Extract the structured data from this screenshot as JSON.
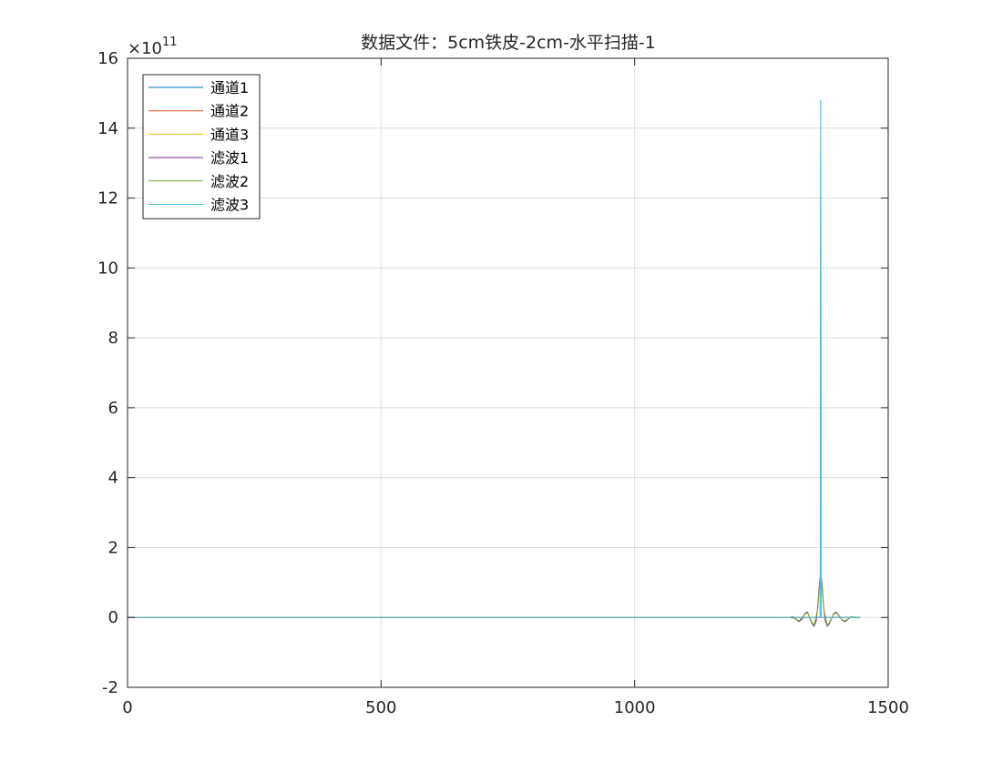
{
  "chart_data": {
    "type": "line",
    "title": "数据文件：5cm铁皮-2cm-水平扫描-1",
    "xlabel": "",
    "ylabel": "",
    "xlim": [
      0,
      1500
    ],
    "ylim": [
      -2,
      16
    ],
    "x_ticks": [
      "0",
      "500",
      "1000",
      "1500"
    ],
    "y_ticks": [
      "-2",
      "0",
      "2",
      "4",
      "6",
      "8",
      "10",
      "12",
      "14",
      "16"
    ],
    "x_tick_values": [
      0,
      500,
      1000,
      1500
    ],
    "y_tick_values": [
      -2,
      0,
      2,
      4,
      6,
      8,
      10,
      12,
      14,
      16
    ],
    "y_multiplier_prefix": "×10",
    "y_multiplier_exponent": "11",
    "grid": true,
    "legend_position": "top-left",
    "series": [
      {
        "name": "通道1",
        "color": "#0072BD",
        "points": [
          [
            0,
            0
          ],
          [
            1360,
            0
          ],
          [
            1366,
            0
          ],
          [
            1367,
            14.8
          ],
          [
            1368,
            0
          ],
          [
            1369,
            0
          ],
          [
            1445,
            0
          ]
        ]
      },
      {
        "name": "通道2",
        "color": "#D95319",
        "points": [
          [
            0,
            0
          ],
          [
            1366,
            0
          ],
          [
            1367,
            8.6
          ],
          [
            1368,
            0
          ],
          [
            1445,
            0
          ]
        ]
      },
      {
        "name": "通道3",
        "color": "#EDB120",
        "points": [
          [
            0,
            0
          ],
          [
            1366,
            0
          ],
          [
            1367,
            11.2
          ],
          [
            1368,
            0
          ],
          [
            1445,
            0
          ]
        ]
      },
      {
        "name": "滤波1",
        "color": "#7E2F8E",
        "points": [
          [
            1305,
            0
          ],
          [
            1312,
            0.02
          ],
          [
            1318,
            -0.05
          ],
          [
            1324,
            -0.12
          ],
          [
            1330,
            -0.05
          ],
          [
            1336,
            0.12
          ],
          [
            1341,
            0.15
          ],
          [
            1346,
            -0.05
          ],
          [
            1350,
            -0.18
          ],
          [
            1354,
            -0.25
          ],
          [
            1358,
            -0.1
          ],
          [
            1361,
            0.3
          ],
          [
            1364,
            0.9
          ],
          [
            1367,
            1.3
          ],
          [
            1370,
            0.9
          ],
          [
            1373,
            0.3
          ],
          [
            1376,
            -0.1
          ],
          [
            1380,
            -0.25
          ],
          [
            1384,
            -0.18
          ],
          [
            1388,
            -0.05
          ],
          [
            1393,
            0.12
          ],
          [
            1398,
            0.15
          ],
          [
            1403,
            0.05
          ],
          [
            1409,
            -0.08
          ],
          [
            1415,
            -0.12
          ],
          [
            1421,
            -0.05
          ],
          [
            1427,
            0.02
          ],
          [
            1433,
            0
          ],
          [
            1445,
            0
          ]
        ]
      },
      {
        "name": "滤波2",
        "color": "#77AC30",
        "points": [
          [
            1305,
            0
          ],
          [
            1318,
            -0.04
          ],
          [
            1324,
            -0.1
          ],
          [
            1336,
            0.1
          ],
          [
            1341,
            0.13
          ],
          [
            1350,
            -0.15
          ],
          [
            1354,
            -0.22
          ],
          [
            1361,
            0.25
          ],
          [
            1364,
            0.8
          ],
          [
            1367,
            1.2
          ],
          [
            1370,
            0.8
          ],
          [
            1373,
            0.25
          ],
          [
            1380,
            -0.22
          ],
          [
            1384,
            -0.15
          ],
          [
            1393,
            0.1
          ],
          [
            1398,
            0.13
          ],
          [
            1409,
            -0.07
          ],
          [
            1415,
            -0.1
          ],
          [
            1427,
            0.02
          ],
          [
            1445,
            0
          ]
        ]
      },
      {
        "name": "滤波3",
        "color": "#4DBEEE",
        "points": [
          [
            0,
            0
          ],
          [
            1366,
            0
          ],
          [
            1367,
            14.8
          ],
          [
            1368,
            0
          ],
          [
            1445,
            0
          ]
        ]
      }
    ]
  }
}
